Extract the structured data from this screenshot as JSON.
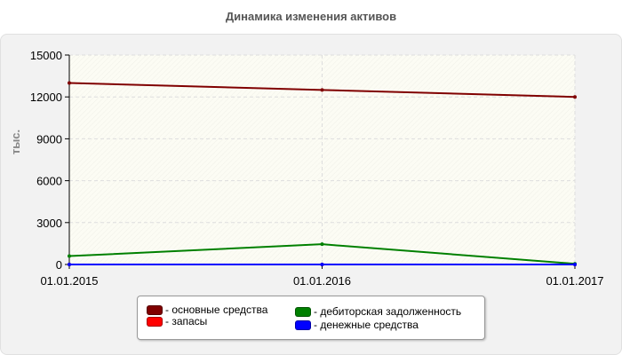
{
  "chart_data": {
    "type": "line",
    "title": "Динамика изменения активов",
    "ylabel": "тыс.",
    "xlabel": "",
    "categories": [
      "01.01.2015",
      "01.01.2016",
      "01.01.2017"
    ],
    "ylim": [
      0,
      15000
    ],
    "yticks": [
      0,
      3000,
      6000,
      9000,
      12000,
      15000
    ],
    "grid": true,
    "legend_position": "bottom",
    "series": [
      {
        "name": "- основные средства",
        "color": "#800000",
        "values": [
          13000,
          12500,
          12000
        ]
      },
      {
        "name": "- запасы",
        "color": "#ff0000",
        "values": [
          0,
          0,
          0
        ]
      },
      {
        "name": "- дебиторская задолженность",
        "color": "#008000",
        "values": [
          600,
          1450,
          50
        ]
      },
      {
        "name": "- денежные средства",
        "color": "#0000ff",
        "values": [
          0,
          0,
          0
        ]
      }
    ]
  }
}
